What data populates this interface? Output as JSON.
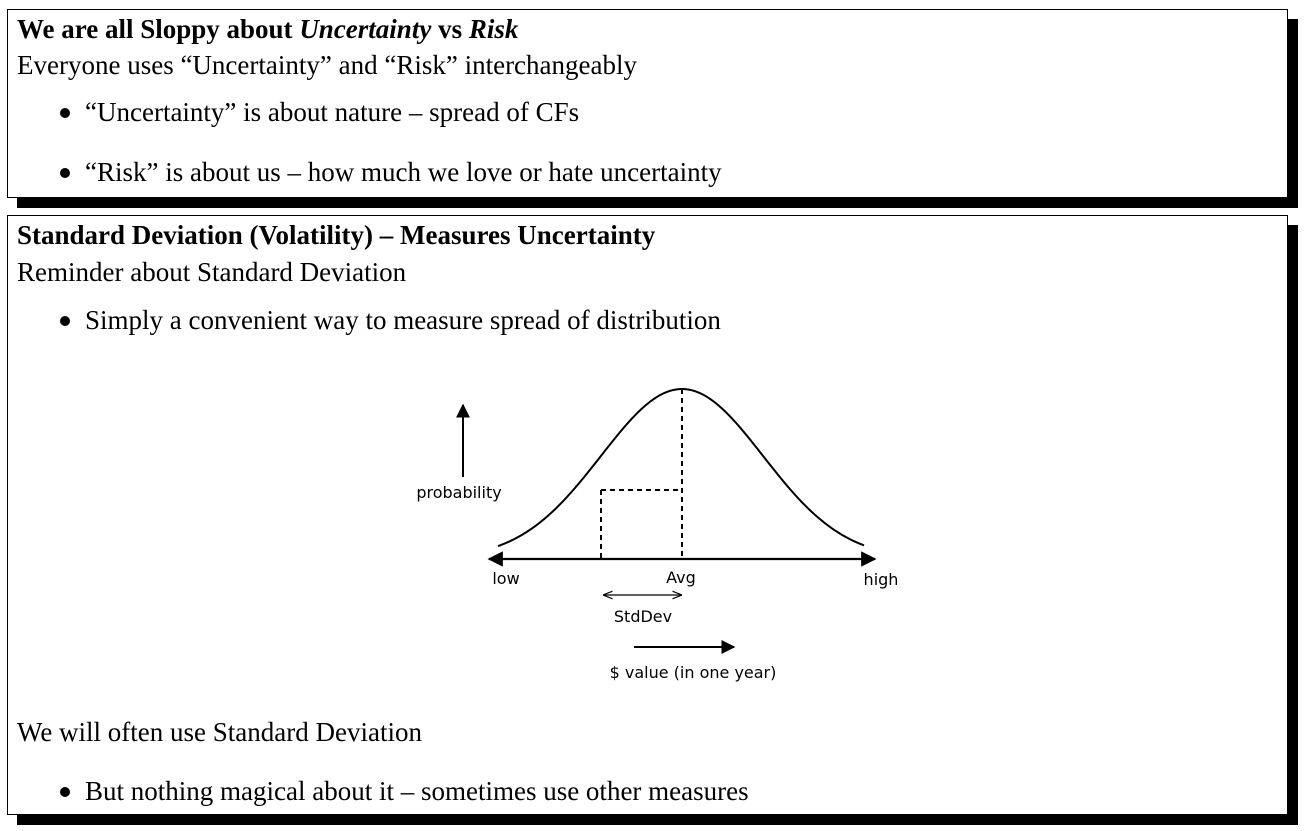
{
  "slide1": {
    "title_prefix": "We are all Sloppy about ",
    "title_em1": "Uncertainty",
    "title_mid": " vs ",
    "title_em2": "Risk",
    "intro": "Everyone uses “Uncertainty” and “Risk” interchangeably",
    "bullets": [
      "“Uncertainty” is about nature – spread of CFs",
      "“Risk” is about us – how much we love or hate uncertainty"
    ]
  },
  "slide2": {
    "title": "Standard Deviation (Volatility) – Measures Uncertainty",
    "intro": "Reminder about Standard Deviation",
    "bullets": [
      "Simply a convenient way to measure spread of distribution"
    ],
    "diagram": {
      "ylabel": "probability",
      "low": "low",
      "avg": "Avg",
      "high": "high",
      "stddev": "StdDev",
      "xlabel": "$ value (in one year)"
    },
    "outro": "We will often use Standard Deviation",
    "outro_bullets": [
      "But nothing magical about it – sometimes use other measures"
    ]
  }
}
